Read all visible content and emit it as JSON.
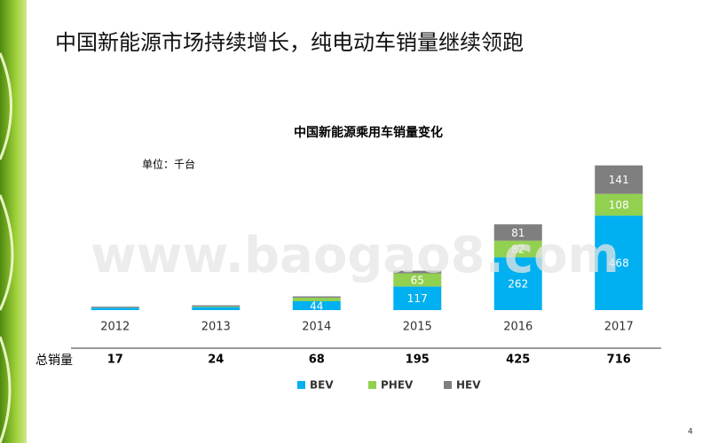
{
  "title": "中国新能源市场持续增长，纯电动车销量继续领跑",
  "page_number": "4",
  "watermark": "www.baogao8.com",
  "chart_data": {
    "type": "stacked_bar",
    "title": "中国新能源乘用车销量变化",
    "unit": "单位：千台",
    "categories": [
      "2012",
      "2013",
      "2014",
      "2015",
      "2016",
      "2017"
    ],
    "series": [
      {
        "name": "BEV",
        "color": "#00b0f0",
        "values": [
          11,
          15,
          44,
          117,
          262,
          468
        ],
        "value_labels": [
          null,
          null,
          "44",
          "117",
          "262",
          "468"
        ]
      },
      {
        "name": "PHEV",
        "color": "#92d050",
        "values": [
          1,
          3,
          17,
          65,
          82,
          108
        ],
        "value_labels": [
          null,
          null,
          null,
          "65",
          "82",
          "108"
        ]
      },
      {
        "name": "HEV",
        "color": "#7f7f7f",
        "values": [
          5,
          6,
          7,
          13,
          81,
          141
        ],
        "value_labels": [
          null,
          null,
          null,
          null,
          "81",
          "141"
        ]
      }
    ],
    "totals_label": "总销量",
    "totals": [
      17,
      24,
      68,
      195,
      425,
      716
    ],
    "ylim": [
      0,
      720
    ]
  }
}
